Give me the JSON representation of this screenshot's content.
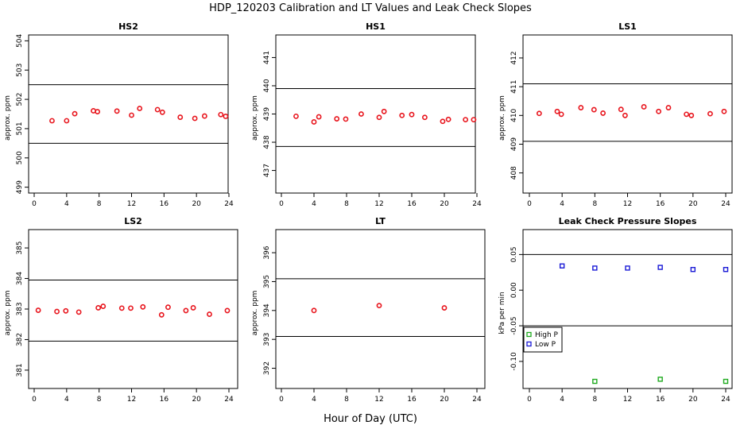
{
  "figure": {
    "title": "HDP_120203  Calibration and LT Values and Leak Check Slopes",
    "xlabel": "Hour of Day (UTC)"
  },
  "colors": {
    "cal": "#e8141c",
    "high_p": "#1faa1f",
    "low_p": "#1a1ad6",
    "axes": "#000000"
  },
  "chart_data": [
    {
      "type": "scatter",
      "title": "HS2",
      "ylabel": "approx. ppm",
      "xlim": [
        0,
        24
      ],
      "xticks": [
        0,
        4,
        8,
        12,
        16,
        20,
        24
      ],
      "ylim": [
        498.8,
        504.2
      ],
      "yticks": [
        499,
        500,
        501,
        502,
        503,
        504
      ],
      "hlines": [
        500.5,
        502.5
      ],
      "series": [
        {
          "name": "HS2",
          "color": "#e8141c",
          "marker": "circle",
          "x": [
            2.2,
            4.0,
            5.0,
            7.3,
            7.8,
            10.2,
            12.0,
            13.0,
            15.2,
            15.8,
            18.0,
            19.8,
            21.0,
            23.0,
            23.6
          ],
          "y": [
            501.27,
            501.27,
            501.51,
            501.61,
            501.58,
            501.6,
            501.46,
            501.69,
            501.65,
            501.56,
            501.39,
            501.35,
            501.43,
            501.48,
            501.42
          ]
        }
      ]
    },
    {
      "type": "scatter",
      "title": "HS1",
      "ylabel": "approx. ppm",
      "xlim": [
        0,
        24
      ],
      "xticks": [
        0,
        4,
        8,
        12,
        16,
        20,
        24
      ],
      "ylim": [
        436.2,
        441.8
      ],
      "yticks": [
        437,
        438,
        439,
        440,
        441
      ],
      "hlines": [
        437.85,
        439.9
      ],
      "series": [
        {
          "name": "HS1",
          "color": "#e8141c",
          "marker": "circle",
          "x": [
            1.8,
            4.0,
            4.6,
            6.8,
            7.9,
            9.8,
            12.0,
            12.6,
            14.8,
            16.0,
            17.6,
            19.8,
            20.5,
            22.6,
            23.6
          ],
          "y": [
            438.92,
            438.72,
            438.9,
            438.83,
            438.82,
            439.0,
            438.88,
            439.09,
            438.95,
            438.98,
            438.88,
            438.74,
            438.81,
            438.8,
            438.8
          ]
        }
      ]
    },
    {
      "type": "scatter",
      "title": "LS1",
      "ylabel": "approx. ppm",
      "xlim": [
        0,
        24
      ],
      "xticks": [
        0,
        4,
        8,
        12,
        16,
        20,
        24
      ],
      "ylim": [
        407.3,
        412.8
      ],
      "yticks": [
        408,
        409,
        410,
        411,
        412
      ],
      "hlines": [
        409.1,
        411.1
      ],
      "series": [
        {
          "name": "LS1",
          "color": "#e8141c",
          "marker": "circle",
          "x": [
            1.2,
            3.4,
            3.9,
            6.3,
            7.9,
            9.0,
            11.2,
            11.7,
            14.0,
            15.8,
            17.0,
            19.2,
            19.8,
            22.1,
            23.8
          ],
          "y": [
            410.07,
            410.14,
            410.04,
            410.27,
            410.2,
            410.08,
            410.21,
            410.0,
            410.3,
            410.14,
            410.27,
            410.04,
            410.0,
            410.06,
            410.14
          ]
        }
      ]
    },
    {
      "type": "scatter",
      "title": "LS2",
      "ylabel": "approx. ppm",
      "xlim": [
        0,
        24
      ],
      "xticks": [
        0,
        4,
        8,
        12,
        16,
        20,
        24
      ],
      "ylim": [
        380.4,
        385.6
      ],
      "yticks": [
        381,
        382,
        383,
        384,
        385
      ],
      "hlines": [
        381.95,
        383.95
      ],
      "series": [
        {
          "name": "LS2",
          "color": "#e8141c",
          "marker": "circle",
          "x": [
            0.5,
            2.8,
            3.9,
            5.5,
            7.9,
            8.5,
            10.8,
            11.9,
            13.4,
            15.7,
            16.5,
            18.7,
            19.6,
            21.6,
            23.8
          ],
          "y": [
            382.96,
            382.92,
            382.94,
            382.9,
            383.04,
            383.09,
            383.03,
            383.03,
            383.07,
            382.81,
            383.06,
            382.95,
            383.04,
            382.83,
            382.95
          ]
        }
      ]
    },
    {
      "type": "scatter",
      "title": "LT",
      "ylabel": "approx. ppm",
      "xlim": [
        0,
        24
      ],
      "xticks": [
        0,
        4,
        8,
        12,
        16,
        20,
        24
      ],
      "ylim": [
        391.3,
        396.8
      ],
      "yticks": [
        392,
        393,
        394,
        395,
        396
      ],
      "hlines": [
        393.1,
        395.1
      ],
      "series": [
        {
          "name": "LT",
          "color": "#e8141c",
          "marker": "circle",
          "x": [
            4.0,
            12.0,
            20.0
          ],
          "y": [
            394.0,
            394.17,
            394.09
          ]
        }
      ]
    },
    {
      "type": "scatter",
      "title": "Leak Check Pressure Slopes",
      "ylabel": "kPa per min",
      "xlim": [
        0,
        24
      ],
      "xticks": [
        0,
        4,
        8,
        12,
        16,
        20,
        24
      ],
      "ylim": [
        -0.138,
        0.085
      ],
      "yticks": [
        -0.1,
        -0.05,
        0.0,
        0.05
      ],
      "ytick_labels": [
        "-0.10",
        "-0.05",
        "0.00",
        "0.05"
      ],
      "hlines": [
        -0.05,
        0.05
      ],
      "legend": {
        "position": "left",
        "entries": [
          "High P",
          "Low P"
        ]
      },
      "series": [
        {
          "name": "High P",
          "color": "#1faa1f",
          "marker": "square",
          "x": [
            8,
            16,
            24
          ],
          "y": [
            -0.128,
            -0.125,
            -0.128
          ]
        },
        {
          "name": "Low P",
          "color": "#1a1ad6",
          "marker": "square",
          "x": [
            4,
            8,
            12,
            16,
            20,
            24
          ],
          "y": [
            0.034,
            0.031,
            0.031,
            0.032,
            0.029,
            0.029
          ]
        }
      ]
    }
  ]
}
